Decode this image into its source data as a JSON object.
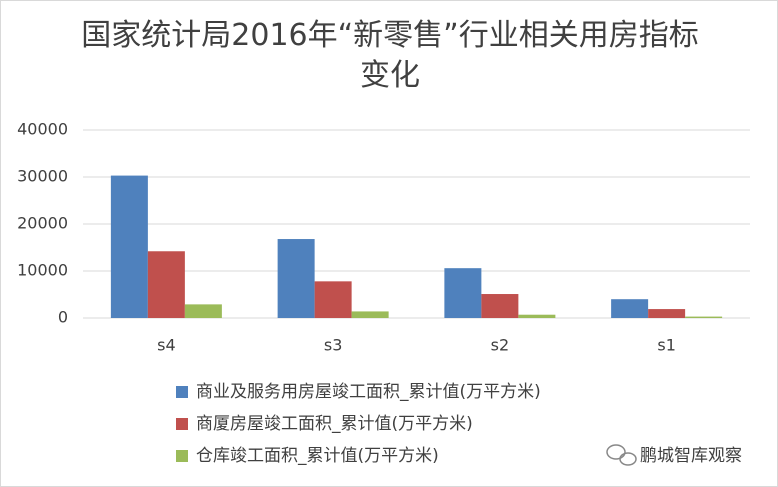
{
  "chart_data": {
    "type": "bar",
    "title": "国家统计局2016年“新零售”行业相关用房指标变化",
    "categories": [
      "s4",
      "s3",
      "s2",
      "s1"
    ],
    "series": [
      {
        "name": "商业及服务用房屋竣工面积_累计值(万平方米)",
        "color": "#4f81bd",
        "values": [
          30300,
          16800,
          10600,
          4000
        ]
      },
      {
        "name": "商厦房屋竣工面积_累计值(万平方米)",
        "color": "#c0504d",
        "values": [
          14200,
          7800,
          5100,
          1900
        ]
      },
      {
        "name": "仓库竣工面积_累计值(万平方米)",
        "color": "#9bbb59",
        "values": [
          2900,
          1400,
          700,
          300
        ]
      }
    ],
    "ylim": [
      0,
      40000
    ],
    "yticks": [
      0,
      10000,
      20000,
      30000,
      40000
    ],
    "grid": true,
    "legend": "bottom"
  },
  "watermark": "鹏城智库观察"
}
